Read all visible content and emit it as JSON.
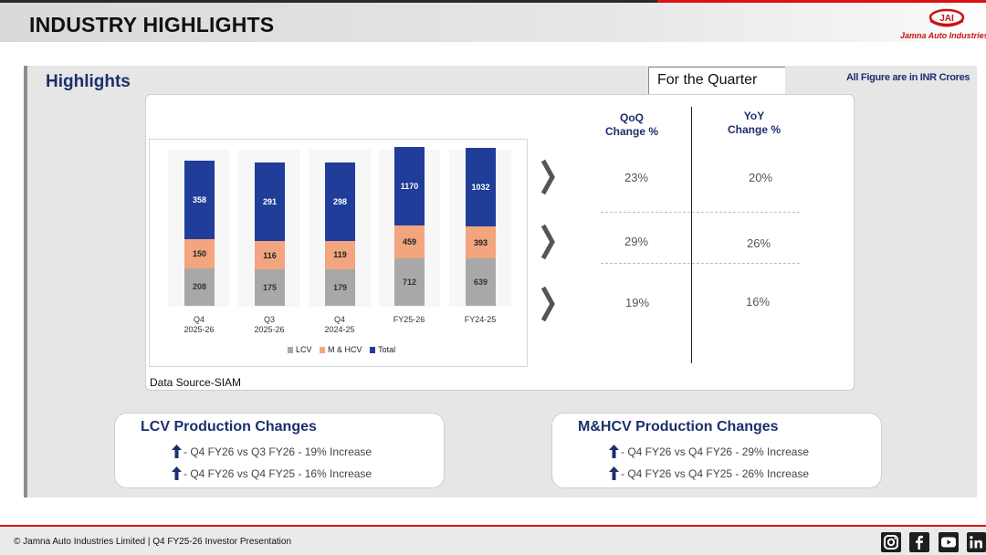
{
  "header": {
    "title": "INDUSTRY HIGHLIGHTS",
    "logo_text": "JAI",
    "company_name": "Jamna Auto Industries L"
  },
  "section": {
    "heading": "Highlights",
    "period_label": "For the Quarter",
    "units_note": "All Figure are in INR Crores",
    "data_source": "Data Source-SIAM"
  },
  "colors": {
    "total": "#1f3d99",
    "mhcv": "#f2a57e",
    "lcv": "#a8a8a8",
    "accent_red": "#dd1111",
    "navy": "#1c2f6e"
  },
  "chart_data": {
    "type": "bar",
    "stacked": true,
    "categories": [
      "Q4 2025-26",
      "Q3 2025-26",
      "Q4 2024-25",
      "FY25-26",
      "FY24-25"
    ],
    "category_lines": [
      [
        "Q4",
        "2025-26"
      ],
      [
        "Q3",
        "2025-26"
      ],
      [
        "Q4",
        "2024-25"
      ],
      [
        "FY25-26",
        ""
      ],
      [
        "FY24-25",
        ""
      ]
    ],
    "series": [
      {
        "name": "LCV",
        "values": [
          208,
          175,
          179,
          712,
          639
        ]
      },
      {
        "name": "M & HCV",
        "values": [
          150,
          116,
          119,
          459,
          393
        ]
      },
      {
        "name": "Total",
        "values": [
          358,
          291,
          298,
          1170,
          1032
        ]
      }
    ],
    "legend_position": "bottom",
    "grid": false
  },
  "comparison": {
    "qoq_header": [
      "QoQ",
      "Change %"
    ],
    "yoy_header": [
      "YoY",
      "Change %"
    ],
    "rows": [
      {
        "qoq": "23%",
        "yoy": "20%"
      },
      {
        "qoq": "29%",
        "yoy": "26%"
      },
      {
        "qoq": "19%",
        "yoy": "16%"
      }
    ]
  },
  "lcv_panel": {
    "title": "LCV Production Changes",
    "lines": [
      "- Q4 FY26 vs Q3 FY26 - 19%  Increase",
      "- Q4 FY26 vs Q4 FY25 - 16%  Increase"
    ]
  },
  "mhcv_panel": {
    "title": "M&HCV Production Changes",
    "lines": [
      "- Q4 FY26 vs Q4 FY26 - 29% Increase",
      "- Q4 FY26 vs Q4 FY25 - 26% Increase"
    ]
  },
  "footer": {
    "text": "© Jamna Auto Industries Limited | Q4 FY25-26 Investor Presentation",
    "social_icons": [
      "instagram-icon",
      "facebook-icon",
      "youtube-icon",
      "linkedin-icon"
    ]
  }
}
